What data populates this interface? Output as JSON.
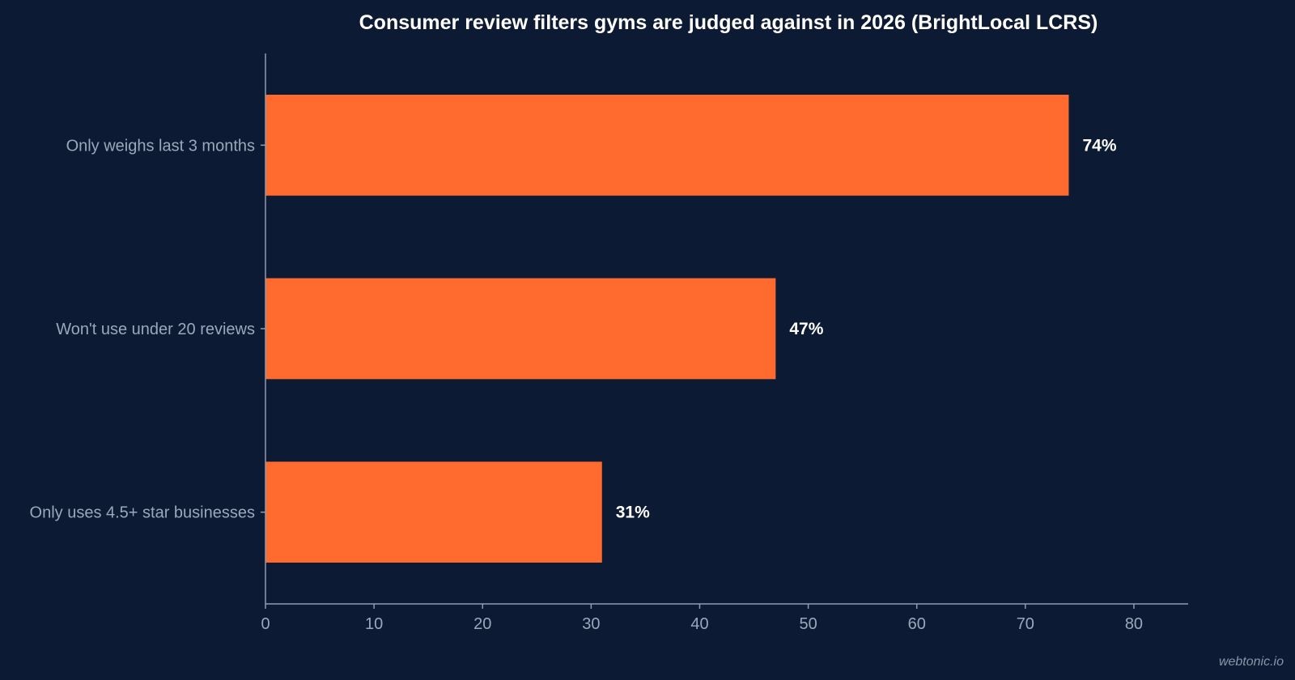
{
  "chart_data": {
    "type": "bar",
    "orientation": "horizontal",
    "title": "Consumer review filters gyms are judged against in 2026 (BrightLocal LCRS)",
    "xlabel": "",
    "ylabel": "",
    "categories": [
      "Only weighs last 3 months",
      "Won't use under 20 reviews",
      "Only uses 4.5+ star businesses"
    ],
    "values": [
      74,
      47,
      31
    ],
    "data_labels": [
      "74%",
      "47%",
      "31%"
    ],
    "xlim": [
      0,
      85
    ],
    "xticks": [
      "0",
      "10",
      "20",
      "30",
      "40",
      "50",
      "60",
      "70",
      "80"
    ],
    "grid": false,
    "legend": "none",
    "bar_color": "#ff6b2e",
    "background_color": "#0c1b33",
    "text_color": "#ffffff",
    "muted_text_color": "#9ba7ba"
  },
  "watermark": "webtonic.io"
}
